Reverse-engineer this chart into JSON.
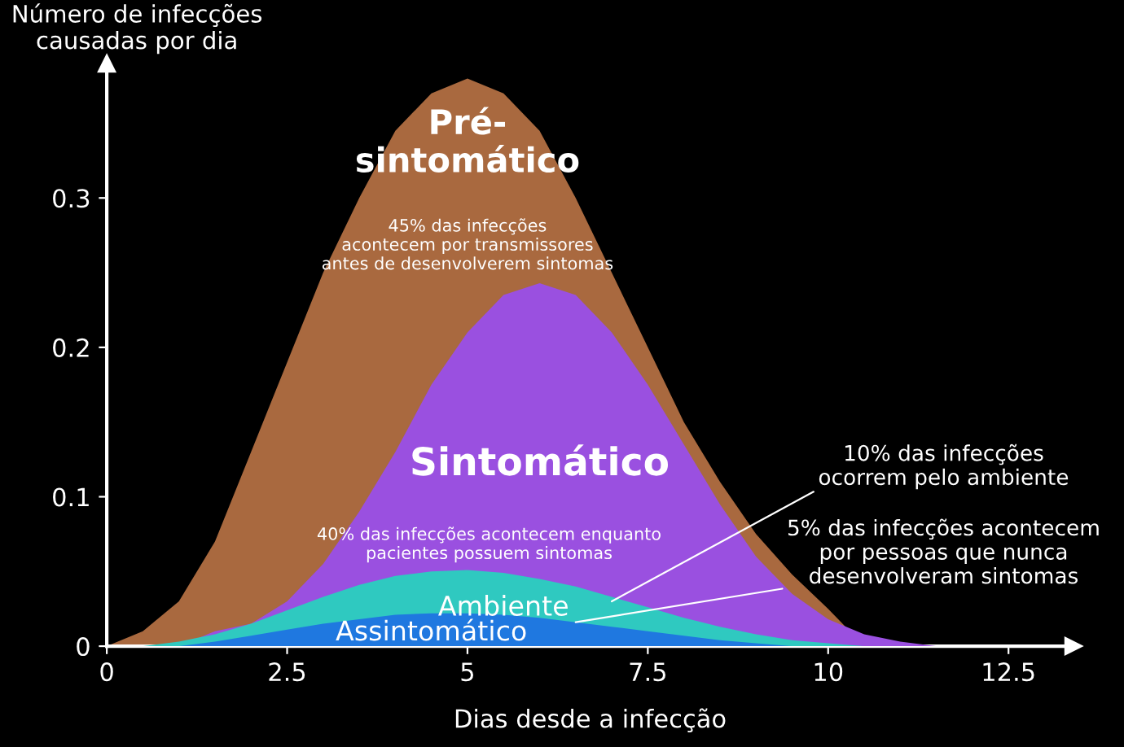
{
  "chart_data": {
    "type": "area",
    "ylabel": "Número de infecções\ncausadas por dia",
    "xlabel": "Dias desde a infecção",
    "xlim": [
      0,
      13.4
    ],
    "ylim": [
      0,
      0.39
    ],
    "xticks": [
      0,
      2.5,
      5,
      7.5,
      10,
      12.5
    ],
    "yticks": [
      0,
      0.1,
      0.2,
      0.3
    ],
    "grid": false,
    "legend": false,
    "series": [
      {
        "name": "Pré-\nsintomático",
        "color": "#a9693f",
        "x": [
          0,
          0.5,
          1,
          1.5,
          2,
          2.5,
          3,
          3.5,
          4,
          4.5,
          5,
          5.5,
          6,
          6.5,
          7,
          7.5,
          8,
          8.5,
          9,
          9.5,
          10,
          10.5
        ],
        "values": [
          0,
          0.01,
          0.03,
          0.07,
          0.13,
          0.19,
          0.25,
          0.3,
          0.345,
          0.37,
          0.38,
          0.37,
          0.345,
          0.3,
          0.25,
          0.2,
          0.15,
          0.11,
          0.075,
          0.048,
          0.025,
          0
        ]
      },
      {
        "name": "Sintomático",
        "color": "#9a50e0",
        "x": [
          1,
          1.5,
          2,
          2.5,
          3,
          3.5,
          4,
          4.5,
          5,
          5.5,
          6,
          6.5,
          7,
          7.5,
          8,
          8.5,
          9,
          9.5,
          10,
          10.5,
          11,
          11.5
        ],
        "values": [
          0,
          0.01,
          0.015,
          0.03,
          0.055,
          0.09,
          0.13,
          0.175,
          0.21,
          0.235,
          0.243,
          0.235,
          0.21,
          0.175,
          0.135,
          0.095,
          0.06,
          0.035,
          0.018,
          0.008,
          0.003,
          0
        ]
      },
      {
        "name": "Ambiente",
        "color": "#2fc9c0",
        "x": [
          0.5,
          1,
          1.5,
          2,
          2.5,
          3,
          3.5,
          4,
          4.5,
          5,
          5.5,
          6,
          6.5,
          7,
          7.5,
          8,
          8.5,
          9,
          9.5,
          10,
          10.5
        ],
        "values": [
          0,
          0.003,
          0.008,
          0.015,
          0.024,
          0.033,
          0.041,
          0.047,
          0.05,
          0.051,
          0.049,
          0.045,
          0.04,
          0.033,
          0.026,
          0.019,
          0.013,
          0.008,
          0.004,
          0.002,
          0
        ]
      },
      {
        "name": "Assintomático",
        "color": "#1f78e0",
        "x": [
          1,
          1.5,
          2,
          2.5,
          3,
          3.5,
          4,
          4.5,
          5,
          5.5,
          6,
          6.5,
          7,
          7.5,
          8,
          8.5,
          9,
          9.5
        ],
        "values": [
          0,
          0.003,
          0.007,
          0.011,
          0.015,
          0.018,
          0.021,
          0.022,
          0.022,
          0.021,
          0.019,
          0.016,
          0.013,
          0.01,
          0.007,
          0.004,
          0.002,
          0
        ]
      }
    ],
    "annotations": [
      "45% das infecções\nacontecem por transmissores\nantes de desenvolverem sintomas",
      "40% das infecções acontecem enquanto\npacientes possuem sintomas",
      {
        "text": "10% das infecções\nocorrem pelo ambiente",
        "x": 7,
        "y": 0.03
      },
      {
        "text": "5% das infecções acontecem\npor pessoas que nunca\ndesenvolveram sintomas",
        "x": 6.5,
        "y": 0.016
      }
    ]
  }
}
